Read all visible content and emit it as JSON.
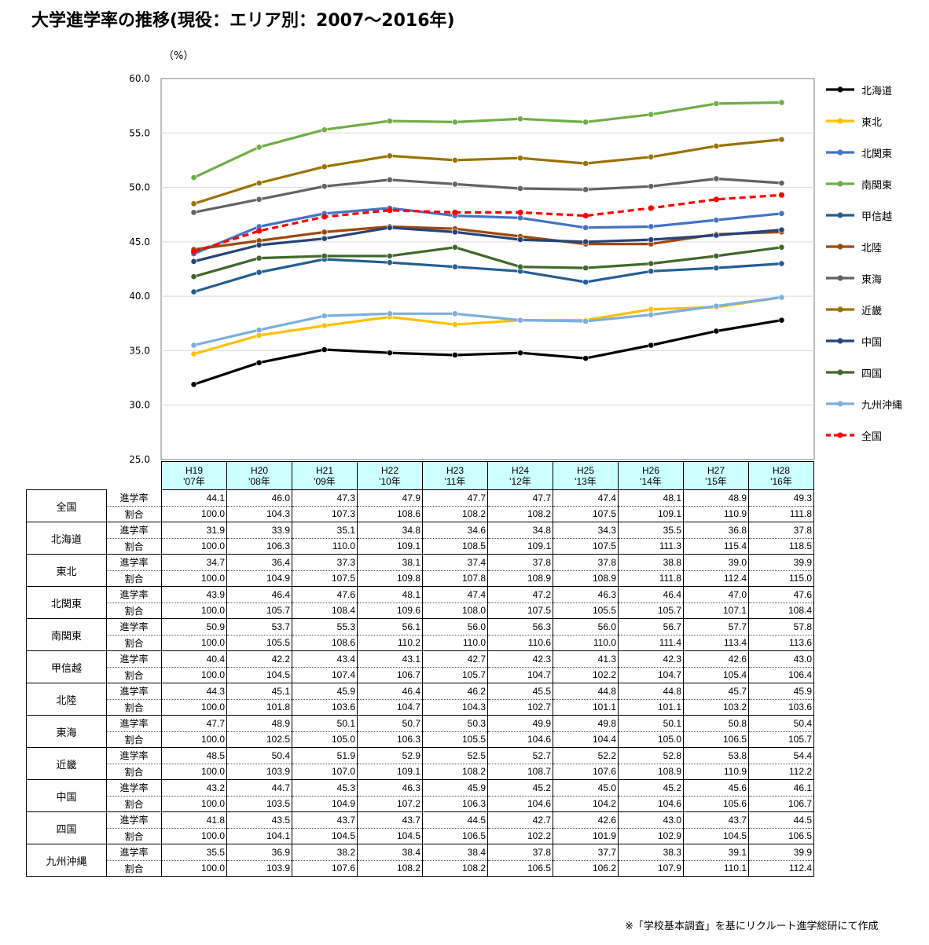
{
  "title": "大学進学率の推移(現役：エリア別：2007～2016年)",
  "unit_label": "（%）",
  "footnote": "※「学校基本調査」を基にリクルート進学総研にて作成",
  "table_row_labels": [
    "進学率",
    "割合"
  ],
  "chart_data": {
    "type": "line",
    "categories": [
      {
        "era": "H19",
        "year": "'07年"
      },
      {
        "era": "H20",
        "year": "'08年"
      },
      {
        "era": "H21",
        "year": "'09年"
      },
      {
        "era": "H22",
        "year": "'10年"
      },
      {
        "era": "H23",
        "year": "'11年"
      },
      {
        "era": "H24",
        "year": "'12年"
      },
      {
        "era": "H25",
        "year": "'13年"
      },
      {
        "era": "H26",
        "year": "'14年"
      },
      {
        "era": "H27",
        "year": "'15年"
      },
      {
        "era": "H28",
        "year": "'16年"
      }
    ],
    "ylim": [
      25.0,
      60.0
    ],
    "yticks": [
      "25.0",
      "30.0",
      "35.0",
      "40.0",
      "45.0",
      "50.0",
      "55.0",
      "60.0"
    ],
    "grid": true,
    "legend_position": "right",
    "series": [
      {
        "name": "北海道",
        "color": "#000000",
        "dashed": false,
        "values": [
          31.9,
          33.9,
          35.1,
          34.8,
          34.6,
          34.8,
          34.3,
          35.5,
          36.8,
          37.8
        ],
        "ratio": [
          100.0,
          106.3,
          110.0,
          109.1,
          108.5,
          109.1,
          107.5,
          111.3,
          115.4,
          118.5
        ]
      },
      {
        "name": "東北",
        "color": "#ffc000",
        "dashed": false,
        "values": [
          34.7,
          36.4,
          37.3,
          38.1,
          37.4,
          37.8,
          37.8,
          38.8,
          39.0,
          39.9
        ],
        "ratio": [
          100.0,
          104.9,
          107.5,
          109.8,
          107.8,
          108.9,
          108.9,
          111.8,
          112.4,
          115.0
        ]
      },
      {
        "name": "北関東",
        "color": "#4472c4",
        "dashed": false,
        "values": [
          43.9,
          46.4,
          47.6,
          48.1,
          47.4,
          47.2,
          46.3,
          46.4,
          47.0,
          47.6
        ],
        "ratio": [
          100.0,
          105.7,
          108.4,
          109.6,
          108.0,
          107.5,
          105.5,
          105.7,
          107.1,
          108.4
        ]
      },
      {
        "name": "南関東",
        "color": "#70ad47",
        "dashed": false,
        "values": [
          50.9,
          53.7,
          55.3,
          56.1,
          56.0,
          56.3,
          56.0,
          56.7,
          57.7,
          57.8
        ],
        "ratio": [
          100.0,
          105.5,
          108.6,
          110.2,
          110.0,
          110.6,
          110.0,
          111.4,
          113.4,
          113.6
        ]
      },
      {
        "name": "甲信越",
        "color": "#255e91",
        "dashed": false,
        "values": [
          40.4,
          42.2,
          43.4,
          43.1,
          42.7,
          42.3,
          41.3,
          42.3,
          42.6,
          43.0
        ],
        "ratio": [
          100.0,
          104.5,
          107.4,
          106.7,
          105.7,
          104.7,
          102.2,
          104.7,
          105.4,
          106.4
        ]
      },
      {
        "name": "北陸",
        "color": "#9e480e",
        "dashed": false,
        "values": [
          44.3,
          45.1,
          45.9,
          46.4,
          46.2,
          45.5,
          44.8,
          44.8,
          45.7,
          45.9
        ],
        "ratio": [
          100.0,
          101.8,
          103.6,
          104.7,
          104.3,
          102.7,
          101.1,
          101.1,
          103.2,
          103.6
        ]
      },
      {
        "name": "東海",
        "color": "#636363",
        "dashed": false,
        "values": [
          47.7,
          48.9,
          50.1,
          50.7,
          50.3,
          49.9,
          49.8,
          50.1,
          50.8,
          50.4
        ],
        "ratio": [
          100.0,
          102.5,
          105.0,
          106.3,
          105.5,
          104.6,
          104.4,
          105.0,
          106.5,
          105.7
        ]
      },
      {
        "name": "近畿",
        "color": "#997300",
        "dashed": false,
        "values": [
          48.5,
          50.4,
          51.9,
          52.9,
          52.5,
          52.7,
          52.2,
          52.8,
          53.8,
          54.4
        ],
        "ratio": [
          100.0,
          103.9,
          107.0,
          109.1,
          108.2,
          108.7,
          107.6,
          108.9,
          110.9,
          112.2
        ]
      },
      {
        "name": "中国",
        "color": "#264478",
        "dashed": false,
        "values": [
          43.2,
          44.7,
          45.3,
          46.3,
          45.9,
          45.2,
          45.0,
          45.2,
          45.6,
          46.1
        ],
        "ratio": [
          100.0,
          103.5,
          104.9,
          107.2,
          106.3,
          104.6,
          104.2,
          104.6,
          105.6,
          106.7
        ]
      },
      {
        "name": "四国",
        "color": "#43682b",
        "dashed": false,
        "values": [
          41.8,
          43.5,
          43.7,
          43.7,
          44.5,
          42.7,
          42.6,
          43.0,
          43.7,
          44.5
        ],
        "ratio": [
          100.0,
          104.1,
          104.5,
          104.5,
          106.5,
          102.2,
          101.9,
          102.9,
          104.5,
          106.5
        ]
      },
      {
        "name": "九州沖縄",
        "color": "#7cafdd",
        "dashed": false,
        "values": [
          35.5,
          36.9,
          38.2,
          38.4,
          38.4,
          37.8,
          37.7,
          38.3,
          39.1,
          39.9
        ],
        "ratio": [
          100.0,
          103.9,
          107.6,
          108.2,
          108.2,
          106.5,
          106.2,
          107.9,
          110.1,
          112.4
        ]
      },
      {
        "name": "全国",
        "color": "#ff0000",
        "dashed": true,
        "values": [
          44.1,
          46.0,
          47.3,
          47.9,
          47.7,
          47.7,
          47.4,
          48.1,
          48.9,
          49.3
        ],
        "ratio": [
          100.0,
          104.3,
          107.3,
          108.6,
          108.2,
          108.2,
          107.5,
          109.1,
          110.9,
          111.8
        ]
      }
    ],
    "table_order": [
      "全国",
      "北海道",
      "東北",
      "北関東",
      "南関東",
      "甲信越",
      "北陸",
      "東海",
      "近畿",
      "中国",
      "四国",
      "九州沖縄"
    ]
  }
}
